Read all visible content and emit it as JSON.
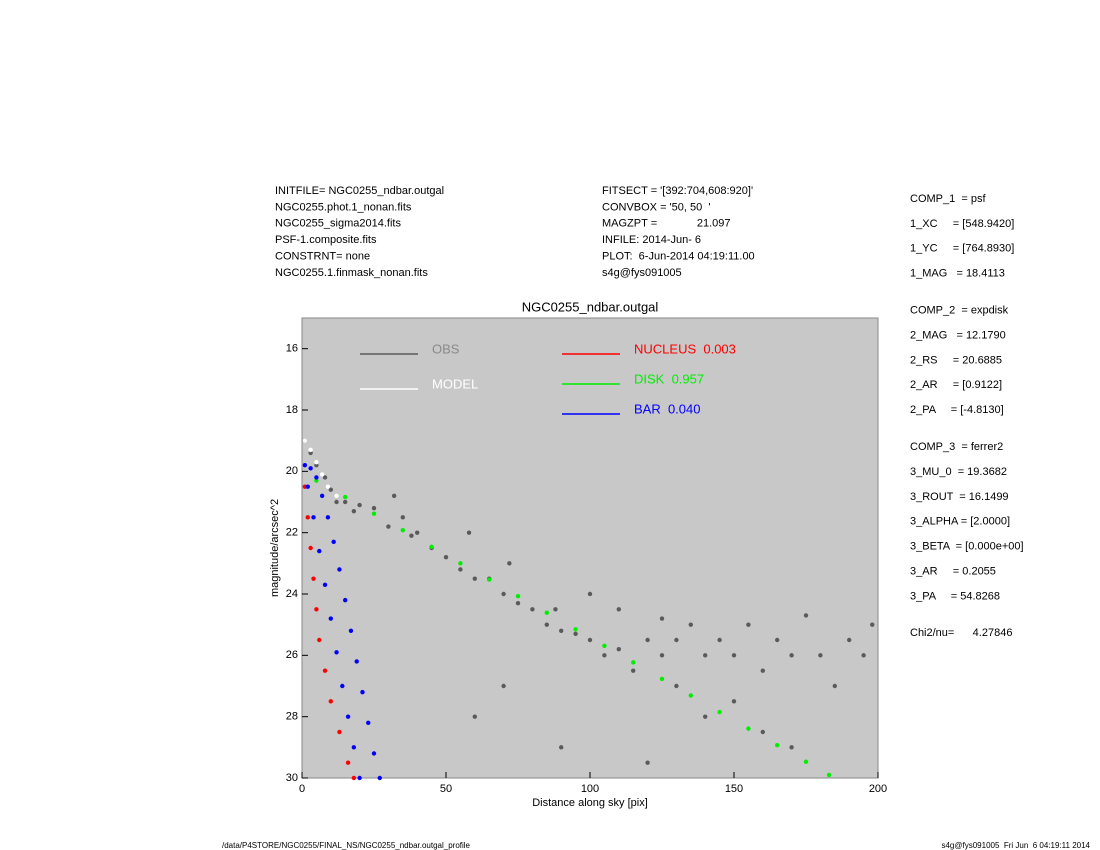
{
  "header": {
    "left": [
      "INITFILE= NGC0255_ndbar.outgal",
      "NGC0255.phot.1_nonan.fits",
      "NGC0255_sigma2014.fits",
      "PSF-1.composite.fits",
      "CONSTRNT= none",
      "NGC0255.1.finmask_nonan.fits"
    ],
    "middle": [
      "FITSECT = '[392:704,608:920]'",
      "CONVBOX = '50, 50  '",
      "MAGZPT =             21.097",
      "INFILE: 2014-Jun- 6",
      "PLOT:  6-Jun-2014 04:19:11.00",
      "s4g@fys091005"
    ]
  },
  "components": [
    [
      "COMP_1  = psf",
      "1_XC     = [548.9420]",
      "1_YC     = [764.8930]",
      "1_MAG   = 18.4113"
    ],
    [
      "COMP_2  = expdisk",
      "2_MAG   = 12.1790",
      "2_RS     = 20.6885",
      "2_AR     = [0.9122]",
      "2_PA     = [-4.8130]"
    ],
    [
      "COMP_3  = ferrer2",
      "3_MU_0  = 19.3682",
      "3_ROUT  = 16.1499",
      "3_ALPHA = [2.0000]",
      "3_BETA  = [0.000e+00]",
      "3_AR     = 0.2055",
      "3_PA     = 54.8268"
    ]
  ],
  "chi2": "Chi2/nu=      4.27846",
  "footer": {
    "left": "/data/P4STORE/NGC0255/FINAL_NS/NGC0255_ndbar.outgal_profile",
    "right": "s4g@fys091005  Fri Jun  6 04:19:11 2014"
  },
  "chart_data": {
    "type": "scatter",
    "title": "NGC0255_ndbar.outgal",
    "x_label": "Distance along sky [pix]",
    "y_label": "magnitude/arcsec^2",
    "xlim": [
      0,
      200
    ],
    "xticks": [
      0,
      50,
      100,
      150,
      200
    ],
    "ylim": [
      30,
      15
    ],
    "yticks": [
      16,
      18,
      20,
      22,
      24,
      26,
      28,
      30
    ],
    "background": "#c8c8c8",
    "series": [
      {
        "name": "OBS",
        "color": "#5a5a5a",
        "x": [
          1,
          3,
          5,
          8,
          10,
          12,
          15,
          18,
          20,
          25,
          30,
          32,
          35,
          38,
          40,
          45,
          50,
          55,
          58,
          60,
          65,
          70,
          72,
          75,
          80,
          85,
          88,
          90,
          95,
          100,
          100,
          105,
          110,
          110,
          115,
          120,
          125,
          125,
          130,
          130,
          135,
          140,
          140,
          145,
          150,
          150,
          155,
          160,
          160,
          165,
          170,
          170,
          175,
          180,
          185,
          190,
          195,
          198,
          60,
          70,
          90,
          120
        ],
        "values": [
          19,
          19.4,
          19.8,
          20.2,
          20.6,
          21,
          21,
          21.3,
          21.1,
          21.2,
          21.8,
          20.8,
          21.5,
          22.1,
          22,
          22.5,
          22.8,
          23.2,
          22,
          23.5,
          23.5,
          24,
          23,
          24.3,
          24.5,
          25,
          24.5,
          25.2,
          25.3,
          25.5,
          24,
          26,
          25.8,
          24.5,
          26.5,
          25.5,
          26,
          24.8,
          27,
          25.5,
          25,
          26,
          28,
          25.5,
          26,
          27.5,
          25,
          26.5,
          28.5,
          25.5,
          26,
          29,
          24.7,
          26,
          27,
          25.5,
          26,
          25,
          28,
          27,
          29,
          29.5
        ]
      },
      {
        "name": "MODEL",
        "color": "#ffffff",
        "x": [
          1,
          3,
          5,
          7,
          9,
          12
        ],
        "values": [
          19,
          19.3,
          19.7,
          20.1,
          20.5,
          20.8
        ]
      },
      {
        "name": "NUCLEUS  0.003",
        "color": "#ff0000",
        "x": [
          1,
          2,
          3,
          4,
          5,
          6,
          8,
          10,
          13,
          16,
          18
        ],
        "values": [
          20.5,
          21.5,
          22.5,
          23.5,
          24.5,
          25.5,
          26.5,
          27.5,
          28.5,
          29.5,
          30
        ]
      },
      {
        "name": "DISK  0.957",
        "color": "#00ee00",
        "x": [
          5,
          15,
          25,
          35,
          45,
          55,
          65,
          75,
          85,
          95,
          105,
          115,
          125,
          135,
          145,
          155,
          165,
          175,
          183
        ],
        "values": [
          20.3,
          20.84,
          21.38,
          21.92,
          22.46,
          23.0,
          23.53,
          24.07,
          24.61,
          25.15,
          25.69,
          26.23,
          26.77,
          27.31,
          27.85,
          28.39,
          28.93,
          29.47,
          29.9
        ]
      },
      {
        "name": "BAR  0.040",
        "color": "#0000ff",
        "x": [
          1,
          3,
          5,
          7,
          9,
          11,
          13,
          15,
          17,
          19,
          21,
          23,
          25,
          27,
          2,
          4,
          6,
          8,
          10,
          12,
          14,
          16,
          18,
          20
        ],
        "values": [
          19.8,
          19.9,
          20.2,
          20.8,
          21.5,
          22.3,
          23.2,
          24.2,
          25.2,
          26.2,
          27.2,
          28.2,
          29.2,
          30,
          20.5,
          21.5,
          22.6,
          23.7,
          24.8,
          25.9,
          27,
          28,
          29,
          30
        ]
      }
    ]
  }
}
